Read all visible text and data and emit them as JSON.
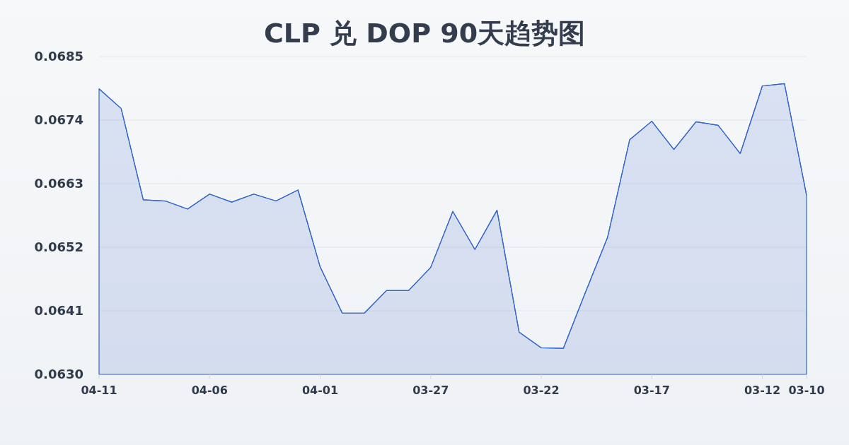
{
  "chart_data": {
    "type": "area",
    "title": "CLP 兑 DOP 90天趋势图",
    "x": [
      "--04-11",
      "--04-10",
      "--04-09",
      "--04-08",
      "--04-07",
      "--04-06",
      "--04-05",
      "--04-04",
      "--04-03",
      "--04-02",
      "--04-01",
      "--03-31",
      "--03-30",
      "--03-29",
      "--03-28",
      "--03-27",
      "--03-26",
      "--03-25",
      "--03-24",
      "--03-23",
      "--03-22",
      "--03-21",
      "--03-20",
      "--03-19",
      "--03-18",
      "--03-17",
      "--03-16",
      "--03-15",
      "--03-14",
      "--03-13",
      "--03-12",
      "--03-11",
      "--03-10"
    ],
    "series": [
      {
        "color": "#3366cc",
        "values": [
          0.06794,
          0.0676,
          0.06602,
          0.066,
          0.06586,
          0.06612,
          0.06598,
          0.06612,
          0.066,
          0.06619,
          0.06486,
          0.06406,
          0.06406,
          0.06445,
          0.06445,
          0.06485,
          0.06582,
          0.06516,
          0.06584,
          0.06373,
          0.06346,
          0.06345,
          0.06442,
          0.06537,
          0.06706,
          0.06738,
          0.06689,
          0.06737,
          0.06731,
          0.06682,
          0.06799,
          0.06803,
          0.0661
        ]
      }
    ],
    "xlim": [
      "--04-11",
      "--03-10"
    ],
    "xticks": [
      {
        "value": "--04-11",
        "label": "04-11"
      },
      {
        "value": "--04-06",
        "label": "04-06"
      },
      {
        "value": "--04-01",
        "label": "04-01"
      },
      {
        "value": "--03-27",
        "label": "03-27"
      },
      {
        "value": "--03-22",
        "label": "03-22"
      },
      {
        "value": "--03-17",
        "label": "03-17"
      },
      {
        "value": "--03-12",
        "label": "03-12"
      },
      {
        "value": "--03-10",
        "label": "03-10"
      }
    ],
    "ylim": [
      0.063,
      0.0685
    ],
    "yticks": [
      {
        "value": 0.063,
        "label": "0.0630"
      },
      0.0641,
      0.0652,
      0.0663,
      0.0674,
      0.0685
    ],
    "grid": "y"
  }
}
